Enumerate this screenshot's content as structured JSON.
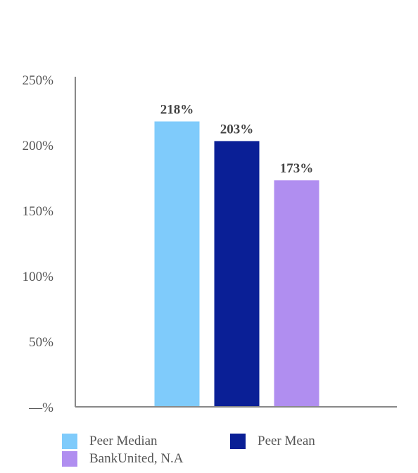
{
  "chart_data": {
    "type": "bar",
    "title": "",
    "xlabel": "",
    "ylabel": "",
    "categories": [
      "Peer Median",
      "Peer Mean",
      "BankUnited, N.A"
    ],
    "values": [
      218,
      203,
      173
    ],
    "data_labels": [
      "218%",
      "203%",
      "173%"
    ],
    "colors": [
      "#7fcbfb",
      "#0a1f96",
      "#b08ef0"
    ],
    "ylim": [
      0,
      250
    ],
    "yticks": [
      0,
      50,
      100,
      150,
      200,
      250
    ],
    "ytick_labels": [
      "—%",
      "50%",
      "100%",
      "150%",
      "200%",
      "250%"
    ],
    "grid": false,
    "legend_position": "bottom",
    "axis_color": "#888888"
  },
  "legend": [
    {
      "label": "Peer Median",
      "color": "#7fcbfb"
    },
    {
      "label": "Peer Mean",
      "color": "#0a1f96"
    },
    {
      "label": "BankUnited, N.A",
      "color": "#b08ef0"
    }
  ]
}
